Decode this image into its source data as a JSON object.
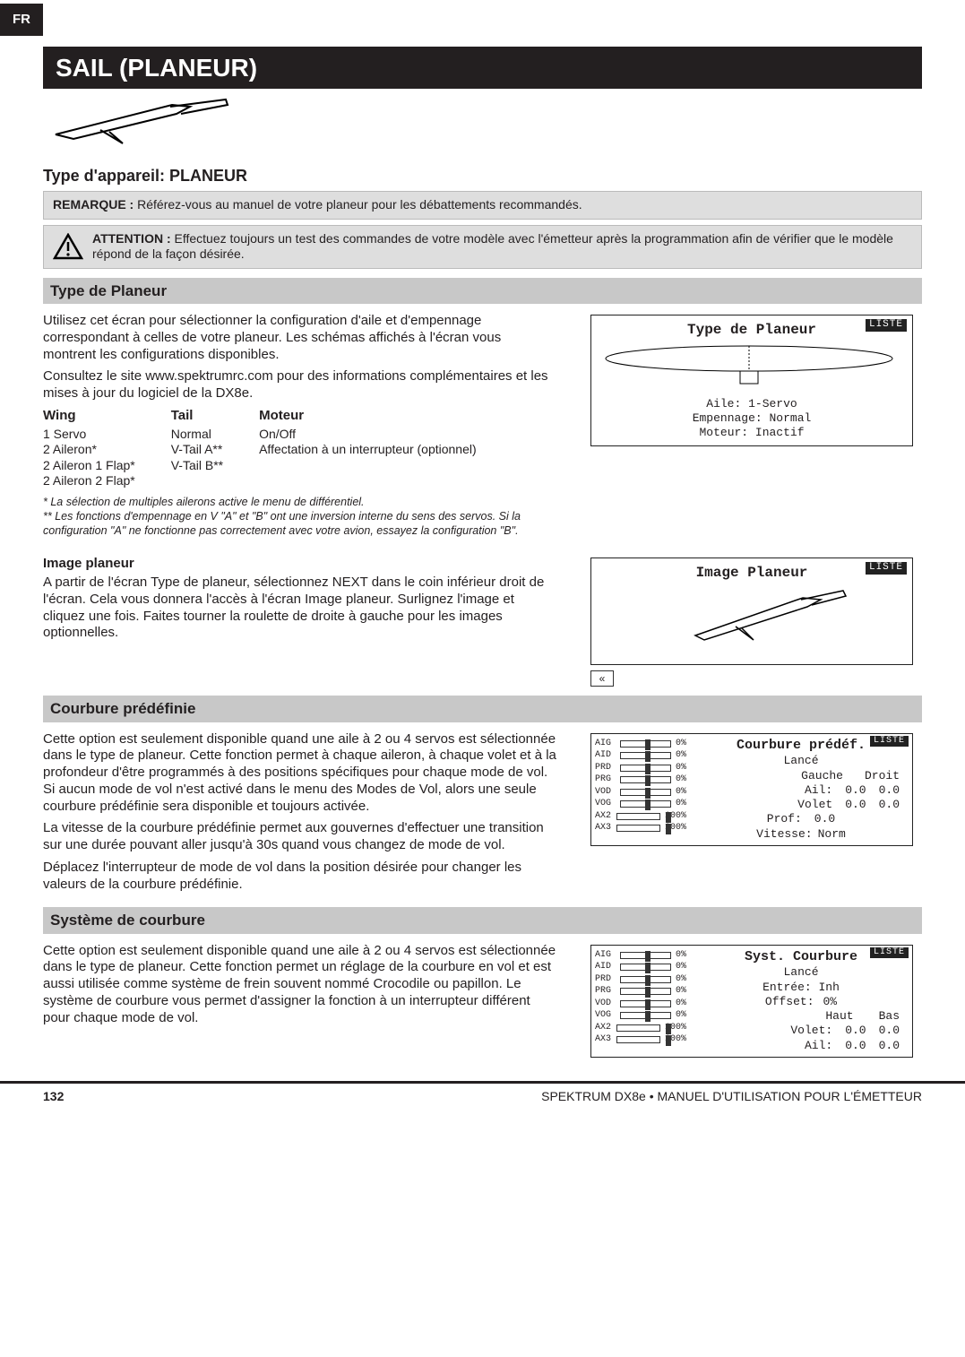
{
  "lang_tab": "FR",
  "title": "SAIL (PLANEUR)",
  "sec_type": "Type d'appareil: PLANEUR",
  "remark": {
    "label": "REMARQUE :",
    "text": "Référez-vous au manuel de votre planeur pour les débattements recommandés."
  },
  "attention": {
    "label": "ATTENTION :",
    "text": "Effectuez toujours un test des commandes de votre modèle avec l'émetteur après la programmation afin de vérifier que le modèle répond de la façon désirée."
  },
  "sub_type_planeur": "Type de Planeur",
  "type_planeur_p1": "Utilisez cet écran pour sélectionner la configuration d'aile et d'empennage correspondant à celles de votre planeur. Les schémas affichés à l'écran vous montrent les configurations disponibles.",
  "type_planeur_p2": "Consultez le site www.spektrumrc.com pour des informations complémentaires et les mises à jour du logiciel de la DX8e.",
  "wing": {
    "h_wing": "Wing",
    "h_tail": "Tail",
    "h_motor": "Moteur",
    "wing_items": [
      "1 Servo",
      "2 Aileron*",
      "2 Aileron 1 Flap*",
      "2 Aileron 2 Flap*"
    ],
    "tail_items": [
      "Normal",
      "V-Tail A**",
      "V-Tail B**"
    ],
    "motor_items": [
      "On/Off",
      "Affectation à un interrupteur (optionnel)"
    ]
  },
  "footnote1": "  * La sélection de multiples ailerons active le menu de différentiel.",
  "footnote2": "** Les fonctions d'empennage en V \"A\" et \"B\" ont une inversion interne du sens des servos. Si la configuration \"A\" ne fonctionne pas correctement avec votre avion, essayez la configuration \"B\".",
  "lcd_type": {
    "title": "Type de Planeur",
    "l1": "Aile: 1-Servo",
    "l2": "Empennage: Normal",
    "l3": "Moteur: Inactif",
    "liste": "LISTE"
  },
  "image_planeur_head": "Image planeur",
  "image_planeur_p": "A partir de l'écran Type de planeur, sélectionnez NEXT dans le coin inférieur droit de l'écran. Cela vous donnera l'accès à l'écran Image planeur. Surlignez l'image et cliquez une fois. Faites tourner la roulette de droite à gauche pour les images optionnelles.",
  "lcd_image": {
    "title": "Image Planeur",
    "liste": "LISTE"
  },
  "sub_courbure": "Courbure prédéfinie",
  "courbure_p1": "Cette option est seulement disponible quand une aile à 2 ou 4 servos est sélectionnée dans le type de planeur. Cette fonction permet à chaque aileron, à chaque volet et à la profondeur d'être programmés à des positions spécifiques pour chaque mode de vol. Si aucun mode de vol n'est activé dans le menu des Modes de Vol, alors une seule courbure prédéfinie sera disponible et toujours activée.",
  "courbure_p2": "La vitesse de la courbure prédéfinie permet aux gouvernes d'effectuer une transition sur une durée pouvant aller jusqu'à 30s quand vous changez de mode de vol.",
  "courbure_p3": "Déplacez l'interrupteur de mode de vol dans la position désirée pour changer les valeurs de la courbure prédéfinie.",
  "lcd_courbure": {
    "liste": "LISTE",
    "title": "Courbure prédéf.",
    "channels": [
      "AIG",
      "AID",
      "PRD",
      "PRG",
      "VOD",
      "VOG",
      "AX2",
      "AX3"
    ],
    "pcts": [
      "0%",
      "0%",
      "0%",
      "0%",
      "0%",
      "0%",
      "100%",
      "100%"
    ],
    "knobs": [
      50,
      50,
      50,
      50,
      50,
      50,
      100,
      100
    ],
    "line_mode": "Lancé",
    "gauche": "Gauche",
    "droit": "Droit",
    "ail_l": "Ail:",
    "ail_g": "0.0",
    "ail_d": "0.0",
    "vol_l": "Volet",
    "vol_g": "0.0",
    "vol_d": "0.0",
    "prof_l": "Prof:",
    "prof_v": "0.0",
    "vit_l": "Vitesse:",
    "vit_v": "Norm"
  },
  "sub_syst": "Système de courbure",
  "syst_p": "Cette option est seulement disponible quand une aile à 2 ou 4 servos est sélectionnée dans le type de planeur. Cette fonction permet un réglage de la courbure en vol et est aussi utilisée comme système de frein souvent nommé Crocodile ou papillon. Le système de courbure vous permet d'assigner la fonction à un interrupteur différent pour chaque mode de vol.",
  "lcd_syst": {
    "liste": "LISTE",
    "title": "Syst. Courbure",
    "channels": [
      "AIG",
      "AID",
      "PRD",
      "PRG",
      "VOD",
      "VOG",
      "AX2",
      "AX3"
    ],
    "pcts": [
      "0%",
      "0%",
      "0%",
      "0%",
      "0%",
      "0%",
      "100%",
      "100%"
    ],
    "knobs": [
      50,
      50,
      50,
      50,
      50,
      50,
      100,
      100
    ],
    "line_mode": "Lancé",
    "entree": "Entrée: Inh",
    "offset_l": "Offset:",
    "offset_v": "0%",
    "haut": "Haut",
    "bas": "Bas",
    "vol_l": "Volet:",
    "vol_h": "0.0",
    "vol_b": "0.0",
    "ail_l": "Ail:",
    "ail_h": "0.0",
    "ail_b": "0.0"
  },
  "footer": {
    "page": "132",
    "text": "SPEKTRUM DX8e • MANUEL D'UTILISATION POUR L'ÉMETTEUR"
  }
}
